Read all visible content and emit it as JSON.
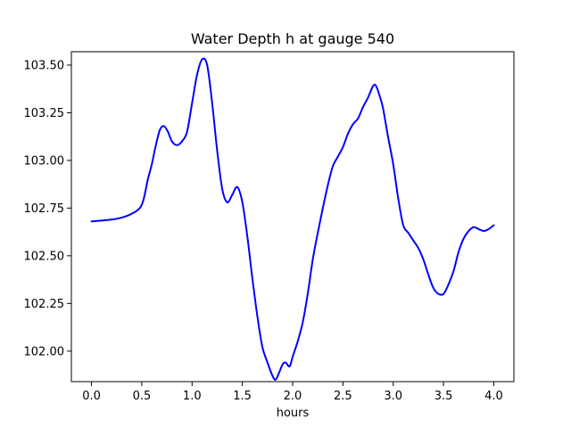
{
  "chart_data": {
    "type": "line",
    "title": "Water Depth h at gauge 540",
    "xlabel": "hours",
    "ylabel": "",
    "xlim": [
      -0.2,
      4.2
    ],
    "ylim": [
      101.84,
      103.57
    ],
    "x_ticks": [
      0.0,
      0.5,
      1.0,
      1.5,
      2.0,
      2.5,
      3.0,
      3.5,
      4.0
    ],
    "x_tick_labels": [
      "0.0",
      "0.5",
      "1.0",
      "1.5",
      "2.0",
      "2.5",
      "3.0",
      "3.5",
      "4.0"
    ],
    "y_ticks": [
      102.0,
      102.25,
      102.5,
      102.75,
      103.0,
      103.25,
      103.5
    ],
    "y_tick_labels": [
      "102.00",
      "102.25",
      "102.50",
      "102.75",
      "103.00",
      "103.25",
      "103.50"
    ],
    "grid": false,
    "series": [
      {
        "color": "#0000ff",
        "x": [
          0.0,
          0.2,
          0.3,
          0.4,
          0.48,
          0.52,
          0.56,
          0.6,
          0.64,
          0.68,
          0.72,
          0.76,
          0.8,
          0.85,
          0.9,
          0.95,
          1.0,
          1.05,
          1.1,
          1.15,
          1.2,
          1.25,
          1.3,
          1.35,
          1.4,
          1.45,
          1.5,
          1.55,
          1.6,
          1.65,
          1.7,
          1.75,
          1.8,
          1.83,
          1.86,
          1.9,
          1.93,
          1.97,
          2.0,
          2.05,
          2.1,
          2.15,
          2.2,
          2.25,
          2.3,
          2.35,
          2.4,
          2.45,
          2.5,
          2.55,
          2.6,
          2.65,
          2.7,
          2.75,
          2.8,
          2.83,
          2.87,
          2.9,
          2.95,
          3.0,
          3.05,
          3.1,
          3.15,
          3.2,
          3.25,
          3.3,
          3.35,
          3.4,
          3.45,
          3.5,
          3.55,
          3.6,
          3.65,
          3.7,
          3.75,
          3.8,
          3.85,
          3.9,
          3.95,
          4.0
        ],
        "y": [
          102.68,
          102.69,
          102.7,
          102.72,
          102.75,
          102.8,
          102.9,
          102.98,
          103.08,
          103.16,
          103.18,
          103.15,
          103.1,
          103.08,
          103.1,
          103.15,
          103.3,
          103.45,
          103.53,
          103.5,
          103.3,
          103.05,
          102.85,
          102.78,
          102.82,
          102.86,
          102.78,
          102.6,
          102.38,
          102.18,
          102.02,
          101.94,
          101.87,
          101.85,
          101.88,
          101.93,
          101.94,
          101.92,
          101.97,
          102.05,
          102.15,
          102.3,
          102.48,
          102.62,
          102.75,
          102.87,
          102.97,
          103.02,
          103.07,
          103.14,
          103.19,
          103.22,
          103.28,
          103.33,
          103.39,
          103.39,
          103.33,
          103.27,
          103.12,
          102.98,
          102.8,
          102.66,
          102.62,
          102.58,
          102.54,
          102.48,
          102.4,
          102.33,
          102.3,
          102.3,
          102.35,
          102.42,
          102.52,
          102.59,
          102.63,
          102.65,
          102.64,
          102.63,
          102.64,
          102.66
        ]
      }
    ]
  }
}
